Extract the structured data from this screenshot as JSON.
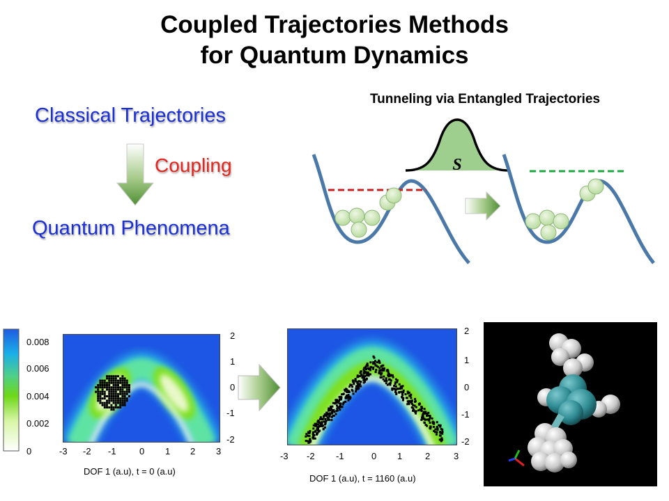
{
  "title": {
    "line1": "Coupled Trajectories Methods",
    "line2": "for Quantum Dynamics"
  },
  "concept": {
    "top": "Classical Trajectories",
    "middle": "Coupling",
    "bottom": "Quantum Phenomena"
  },
  "tunneling": {
    "title": "Tunneling via Entangled Trajectories",
    "symbol": "S"
  },
  "colorbar": {
    "labels": [
      "0.008",
      "0.006",
      "0.004",
      "0.002",
      "0"
    ]
  },
  "plot1": {
    "x_ticks": [
      "-3",
      "-2",
      "-1",
      "0",
      "1",
      "2",
      "3"
    ],
    "y_ticks": [
      "2",
      "1",
      "0",
      "-1",
      "-2"
    ],
    "xlabel": "DOF 1 (a.u), t = 0 (a.u)"
  },
  "plot2": {
    "x_ticks": [
      "-3",
      "-2",
      "-1",
      "0",
      "1",
      "2",
      "3"
    ],
    "y_ticks": [
      "2",
      "1",
      "0",
      "-1",
      "-2"
    ],
    "xlabel": "DOF 1 (a.u), t = 1160 (a.u)"
  },
  "colors": {
    "label_blue": "#1a2fd6",
    "label_red": "#e8241c",
    "potential": "#4a78a8",
    "ball": "#c6e2a8",
    "gaussian_fill": "#9ecf8e"
  }
}
